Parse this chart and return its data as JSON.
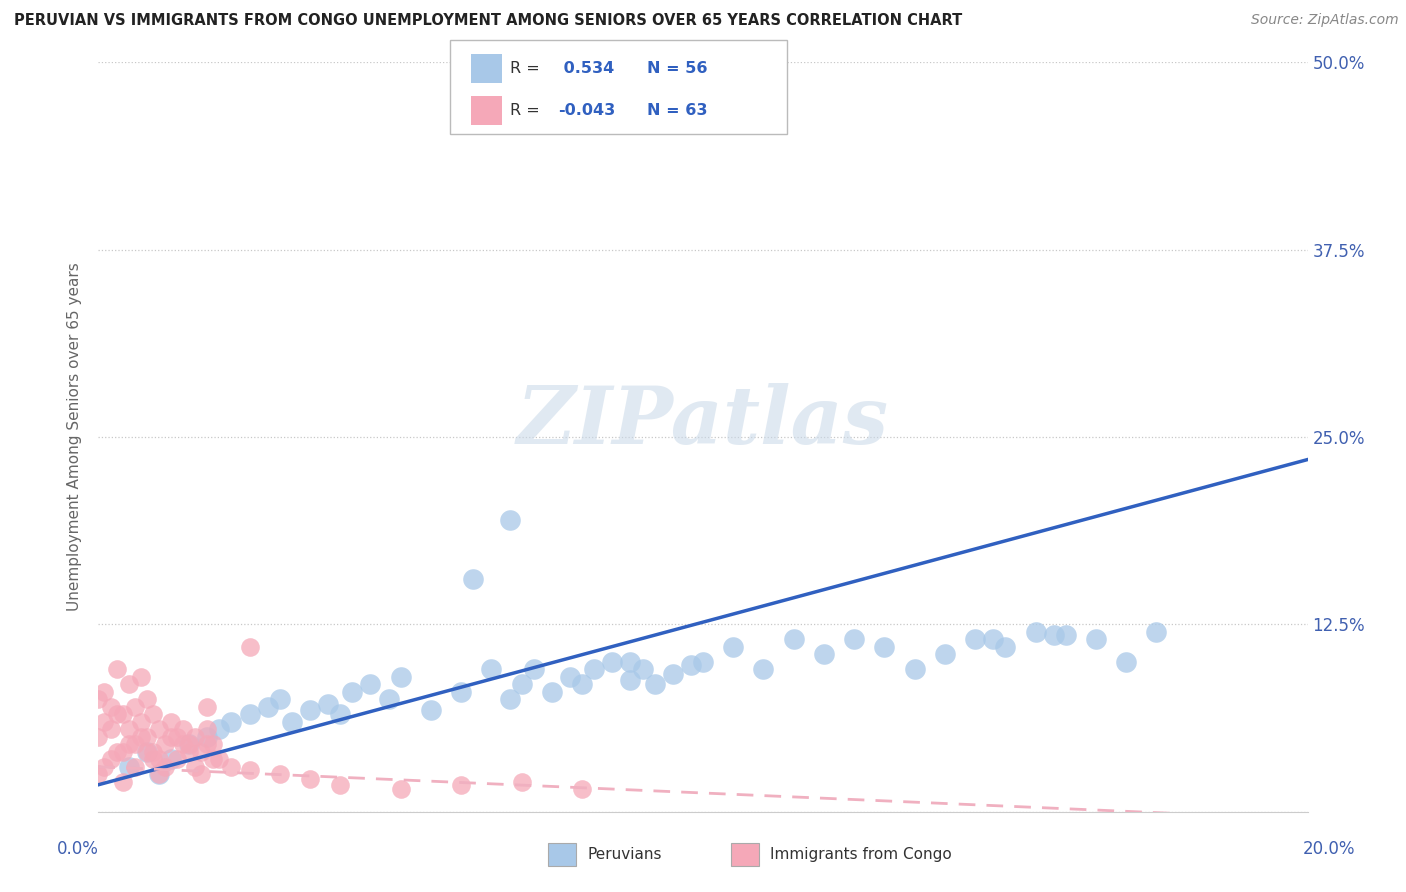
{
  "title": "PERUVIAN VS IMMIGRANTS FROM CONGO UNEMPLOYMENT AMONG SENIORS OVER 65 YEARS CORRELATION CHART",
  "source": "Source: ZipAtlas.com",
  "ylabel": "Unemployment Among Seniors over 65 years",
  "ytick_values": [
    0.0,
    0.125,
    0.25,
    0.375,
    0.5
  ],
  "ytick_labels": [
    "",
    "12.5%",
    "25.0%",
    "37.5%",
    "50.0%"
  ],
  "xlim": [
    0.0,
    0.2
  ],
  "ylim": [
    0.0,
    0.5
  ],
  "blue_R": 0.534,
  "blue_N": 56,
  "pink_R": -0.043,
  "pink_N": 63,
  "blue_color": "#a8c8e8",
  "pink_color": "#f5a8b8",
  "blue_line_color": "#3060c0",
  "pink_line_color": "#f0b0c0",
  "blue_line_y0": 0.018,
  "blue_line_y1": 0.235,
  "pink_line_y0": 0.03,
  "pink_line_y1": -0.005,
  "legend_label_blue": "Peruvians",
  "legend_label_pink": "Immigrants from Congo",
  "watermark_text": "ZIPatlas",
  "blue_points_x": [
    0.005,
    0.008,
    0.01,
    0.012,
    0.015,
    0.018,
    0.02,
    0.022,
    0.025,
    0.028,
    0.03,
    0.032,
    0.035,
    0.038,
    0.04,
    0.042,
    0.045,
    0.048,
    0.05,
    0.055,
    0.06,
    0.062,
    0.065,
    0.068,
    0.07,
    0.072,
    0.075,
    0.078,
    0.08,
    0.082,
    0.085,
    0.088,
    0.09,
    0.092,
    0.095,
    0.098,
    0.1,
    0.105,
    0.11,
    0.115,
    0.12,
    0.125,
    0.13,
    0.135,
    0.14,
    0.145,
    0.15,
    0.155,
    0.16,
    0.165,
    0.17,
    0.175,
    0.148,
    0.068,
    0.158,
    0.088
  ],
  "blue_points_y": [
    0.03,
    0.04,
    0.025,
    0.035,
    0.045,
    0.05,
    0.055,
    0.06,
    0.065,
    0.07,
    0.075,
    0.06,
    0.068,
    0.072,
    0.065,
    0.08,
    0.085,
    0.075,
    0.09,
    0.068,
    0.08,
    0.155,
    0.095,
    0.075,
    0.085,
    0.095,
    0.08,
    0.09,
    0.085,
    0.095,
    0.1,
    0.088,
    0.095,
    0.085,
    0.092,
    0.098,
    0.1,
    0.11,
    0.095,
    0.115,
    0.105,
    0.115,
    0.11,
    0.095,
    0.105,
    0.115,
    0.11,
    0.12,
    0.118,
    0.115,
    0.1,
    0.12,
    0.115,
    0.195,
    0.118,
    0.1
  ],
  "pink_points_x": [
    0.0,
    0.001,
    0.002,
    0.003,
    0.004,
    0.005,
    0.006,
    0.007,
    0.008,
    0.009,
    0.01,
    0.011,
    0.012,
    0.013,
    0.014,
    0.015,
    0.016,
    0.017,
    0.018,
    0.019,
    0.0,
    0.001,
    0.002,
    0.003,
    0.004,
    0.005,
    0.006,
    0.007,
    0.008,
    0.009,
    0.01,
    0.011,
    0.012,
    0.013,
    0.014,
    0.015,
    0.016,
    0.017,
    0.018,
    0.019,
    0.0,
    0.001,
    0.002,
    0.003,
    0.004,
    0.005,
    0.006,
    0.007,
    0.008,
    0.009,
    0.02,
    0.022,
    0.025,
    0.03,
    0.035,
    0.04,
    0.05,
    0.06,
    0.07,
    0.08,
    0.025,
    0.018,
    0.01
  ],
  "pink_points_y": [
    0.025,
    0.03,
    0.035,
    0.04,
    0.02,
    0.045,
    0.03,
    0.05,
    0.04,
    0.035,
    0.025,
    0.03,
    0.05,
    0.035,
    0.045,
    0.04,
    0.03,
    0.025,
    0.045,
    0.035,
    0.05,
    0.06,
    0.055,
    0.065,
    0.04,
    0.055,
    0.045,
    0.06,
    0.05,
    0.04,
    0.035,
    0.045,
    0.06,
    0.05,
    0.055,
    0.045,
    0.05,
    0.04,
    0.055,
    0.045,
    0.075,
    0.08,
    0.07,
    0.095,
    0.065,
    0.085,
    0.07,
    0.09,
    0.075,
    0.065,
    0.035,
    0.03,
    0.028,
    0.025,
    0.022,
    0.018,
    0.015,
    0.018,
    0.02,
    0.015,
    0.11,
    0.07,
    0.055
  ]
}
